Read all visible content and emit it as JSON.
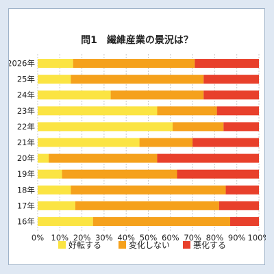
{
  "chart_data": {
    "type": "bar",
    "orientation": "horizontal",
    "stacked": true,
    "title": "問1　繊維産業の景況は？",
    "categories": [
      "2026年",
      "25年",
      "24年",
      "23年",
      "22年",
      "21年",
      "20年",
      "19年",
      "18年",
      "17年",
      "16年"
    ],
    "series": [
      {
        "name": "好転する",
        "color": "#fbe443",
        "values": [
          16,
          15,
          33,
          54,
          61,
          46,
          5,
          11,
          15,
          17,
          25
        ]
      },
      {
        "name": "変化しない",
        "color": "#f5a11c",
        "values": [
          55,
          60,
          42,
          27,
          23,
          24,
          49,
          52,
          70,
          65,
          62
        ]
      },
      {
        "name": "悪化する",
        "color": "#e8402b",
        "values": [
          29,
          25,
          25,
          19,
          16,
          30,
          46,
          37,
          15,
          18,
          13
        ]
      }
    ],
    "xlim": [
      0,
      100
    ],
    "x_ticks": [
      "0%",
      "10%",
      "20%",
      "30%",
      "40%",
      "50%",
      "60%",
      "70%",
      "80%",
      "90%",
      "100%"
    ],
    "grid": true,
    "legend_position": "bottom"
  }
}
